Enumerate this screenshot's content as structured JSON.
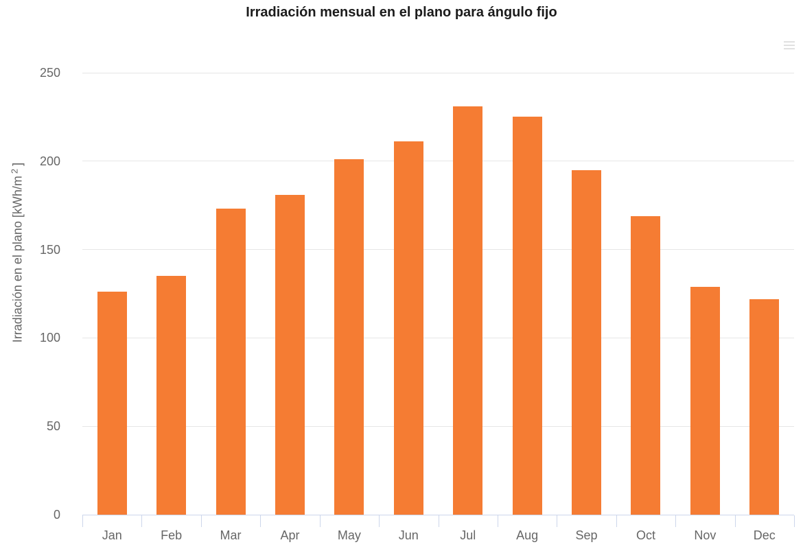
{
  "chart": {
    "title": "Irradiación mensual en el plano para ángulo fijo",
    "ylabel_parts": {
      "base": "Irradiación en el plano [kWh/m",
      "sup": "2",
      "close": "]"
    }
  },
  "chart_data": {
    "type": "bar",
    "title": "Irradiación mensual en el plano para ángulo fijo",
    "categories": [
      "Jan",
      "Feb",
      "Mar",
      "Apr",
      "May",
      "Jun",
      "Jul",
      "Aug",
      "Sep",
      "Oct",
      "Nov",
      "Dec"
    ],
    "values": [
      126,
      135,
      173,
      181,
      201,
      211,
      231,
      225,
      195,
      169,
      129,
      122
    ],
    "xlabel": "",
    "ylabel": "Irradiación en el plano [kWh/m²]",
    "ylim": [
      0,
      250
    ],
    "ytick_step": 50,
    "yticks": [
      0,
      50,
      100,
      150,
      200,
      250
    ],
    "grid": true,
    "legend": false
  },
  "colors": {
    "bar": "#f57c33",
    "grid_line": "#e6e6e6",
    "axis_line": "#ccd6eb",
    "tick_label": "#666666",
    "title_text": "#1c1c1c",
    "background": "#ffffff",
    "menu_icon": "#e0e0e0"
  }
}
